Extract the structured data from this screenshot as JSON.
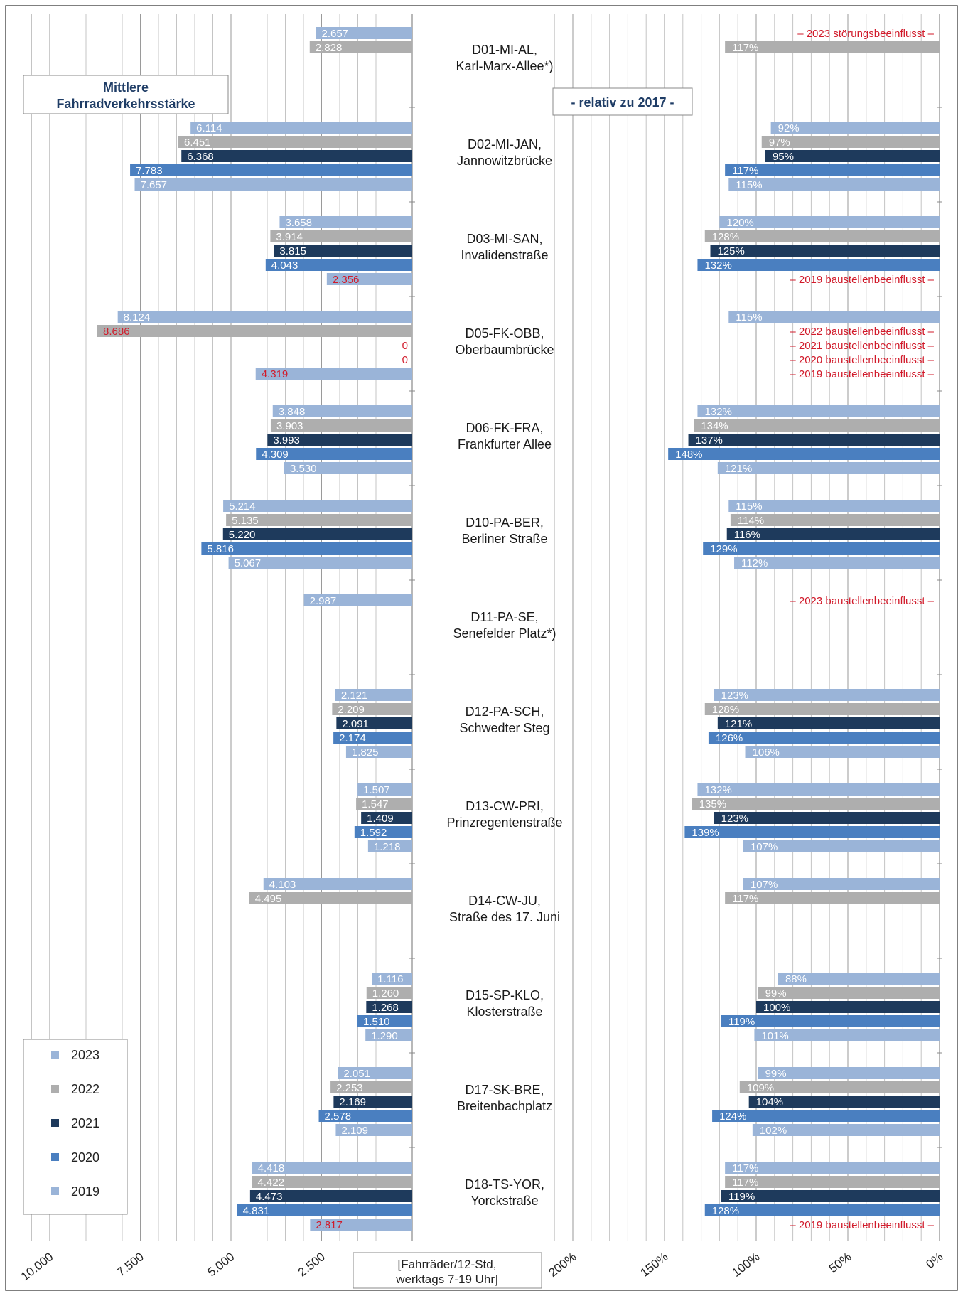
{
  "chart_data": {
    "type": "bar",
    "orientation": "horizontal",
    "left_panel_title": [
      "Mittlere",
      "Fahrradverkehrsstärke"
    ],
    "right_panel_title": "- relativ zu 2017 -",
    "unit_label": [
      "[Fahrräder/12-Std,",
      "werktags 7-19 Uhr]"
    ],
    "left_axis": {
      "ticks": [
        "10.000",
        "7.500",
        "5.000",
        "2.500"
      ],
      "tick_values": [
        10000,
        7500,
        5000,
        2500
      ],
      "range": [
        0,
        11000
      ],
      "grid": true
    },
    "right_axis": {
      "ticks": [
        "200%",
        "150%",
        "100%",
        "50%",
        "0%"
      ],
      "tick_values": [
        200,
        150,
        100,
        50,
        0
      ],
      "range": [
        0,
        220
      ],
      "grid": true
    },
    "years": [
      "2023",
      "2022",
      "2021",
      "2020",
      "2019"
    ],
    "colors": {
      "2023": "#9ab4d8",
      "2022": "#aeaeae",
      "2021": "#1e3a5c",
      "2020": "#4a7fc0",
      "2019": "#9ab4d8",
      "note": "#d11a2a"
    },
    "legend": {
      "placement": "bottom-left",
      "entries": [
        "2023",
        "2022",
        "2021",
        "2020",
        "2019"
      ]
    },
    "stations": [
      {
        "name": [
          "D01-MI-AL,",
          "Karl-Marx-Allee*)"
        ],
        "counts": [
          {
            "year": "2023",
            "value": 2657,
            "label": "2.657"
          },
          {
            "year": "2022",
            "value": 2828,
            "label": "2.828"
          }
        ],
        "relative": [
          {
            "year": "2023",
            "note": "– 2023 störungsbeeinflusst –"
          },
          {
            "year": "2022",
            "value": 117,
            "label": "117%"
          }
        ]
      },
      {
        "name": [
          "D02-MI-JAN,",
          "Jannowitzbrücke"
        ],
        "counts": [
          {
            "year": "2023",
            "value": 6114,
            "label": "6.114"
          },
          {
            "year": "2022",
            "value": 6451,
            "label": "6.451"
          },
          {
            "year": "2021",
            "value": 6368,
            "label": "6.368"
          },
          {
            "year": "2020",
            "value": 7783,
            "label": "7.783"
          },
          {
            "year": "2019",
            "value": 7657,
            "label": "7.657"
          }
        ],
        "relative": [
          {
            "year": "2023",
            "value": 92,
            "label": "92%"
          },
          {
            "year": "2022",
            "value": 97,
            "label": "97%"
          },
          {
            "year": "2021",
            "value": 95,
            "label": "95%"
          },
          {
            "year": "2020",
            "value": 117,
            "label": "117%"
          },
          {
            "year": "2019",
            "value": 115,
            "label": "115%"
          }
        ]
      },
      {
        "name": [
          "D03-MI-SAN,",
          "Invalidenstraße"
        ],
        "counts": [
          {
            "year": "2023",
            "value": 3658,
            "label": "3.658"
          },
          {
            "year": "2022",
            "value": 3914,
            "label": "3.914"
          },
          {
            "year": "2021",
            "value": 3815,
            "label": "3.815"
          },
          {
            "year": "2020",
            "value": 4043,
            "label": "4.043"
          },
          {
            "year": "2019",
            "value": 2356,
            "label": "2.356",
            "flagged": true
          }
        ],
        "relative": [
          {
            "year": "2023",
            "value": 120,
            "label": "120%"
          },
          {
            "year": "2022",
            "value": 128,
            "label": "128%"
          },
          {
            "year": "2021",
            "value": 125,
            "label": "125%"
          },
          {
            "year": "2020",
            "value": 132,
            "label": "132%"
          },
          {
            "year": "2019",
            "note": "– 2019 baustellenbeeinflusst –"
          }
        ]
      },
      {
        "name": [
          "D05-FK-OBB,",
          "Oberbaumbrücke"
        ],
        "counts": [
          {
            "year": "2023",
            "value": 8124,
            "label": "8.124"
          },
          {
            "year": "2022",
            "value": 8686,
            "label": "8.686",
            "flagged": true
          },
          {
            "year": "2021",
            "value": 0,
            "label": "0",
            "flagged": true
          },
          {
            "year": "2020",
            "value": 0,
            "label": "0",
            "flagged": true
          },
          {
            "year": "2019",
            "value": 4319,
            "label": "4.319",
            "flagged": true
          }
        ],
        "relative": [
          {
            "year": "2023",
            "value": 115,
            "label": "115%"
          },
          {
            "year": "2022",
            "note": "– 2022 baustellenbeeinflusst –"
          },
          {
            "year": "2021",
            "note": "– 2021 baustellenbeeinflusst –"
          },
          {
            "year": "2020",
            "note": "– 2020 baustellenbeeinflusst –"
          },
          {
            "year": "2019",
            "note": "– 2019 baustellenbeeinflusst –"
          }
        ]
      },
      {
        "name": [
          "D06-FK-FRA,",
          "Frankfurter Allee"
        ],
        "counts": [
          {
            "year": "2023",
            "value": 3848,
            "label": "3.848"
          },
          {
            "year": "2022",
            "value": 3903,
            "label": "3.903"
          },
          {
            "year": "2021",
            "value": 3993,
            "label": "3.993"
          },
          {
            "year": "2020",
            "value": 4309,
            "label": "4.309"
          },
          {
            "year": "2019",
            "value": 3530,
            "label": "3.530"
          }
        ],
        "relative": [
          {
            "year": "2023",
            "value": 132,
            "label": "132%"
          },
          {
            "year": "2022",
            "value": 134,
            "label": "134%"
          },
          {
            "year": "2021",
            "value": 137,
            "label": "137%"
          },
          {
            "year": "2020",
            "value": 148,
            "label": "148%"
          },
          {
            "year": "2019",
            "value": 121,
            "label": "121%"
          }
        ]
      },
      {
        "name": [
          "D10-PA-BER,",
          "Berliner Straße"
        ],
        "counts": [
          {
            "year": "2023",
            "value": 5214,
            "label": "5.214"
          },
          {
            "year": "2022",
            "value": 5135,
            "label": "5.135"
          },
          {
            "year": "2021",
            "value": 5220,
            "label": "5.220"
          },
          {
            "year": "2020",
            "value": 5816,
            "label": "5.816"
          },
          {
            "year": "2019",
            "value": 5067,
            "label": "5.067"
          }
        ],
        "relative": [
          {
            "year": "2023",
            "value": 115,
            "label": "115%"
          },
          {
            "year": "2022",
            "value": 114,
            "label": "114%"
          },
          {
            "year": "2021",
            "value": 116,
            "label": "116%"
          },
          {
            "year": "2020",
            "value": 129,
            "label": "129%"
          },
          {
            "year": "2019",
            "value": 112,
            "label": "112%"
          }
        ]
      },
      {
        "name": [
          "D11-PA-SE,",
          "Senefelder Platz*)"
        ],
        "counts": [
          {
            "year": "2023",
            "value": 2987,
            "label": "2.987"
          }
        ],
        "relative": [
          {
            "year": "2023",
            "note": "– 2023 baustellenbeeinflusst –"
          }
        ]
      },
      {
        "name": [
          "D12-PA-SCH,",
          "Schwedter Steg"
        ],
        "counts": [
          {
            "year": "2023",
            "value": 2121,
            "label": "2.121"
          },
          {
            "year": "2022",
            "value": 2209,
            "label": "2.209"
          },
          {
            "year": "2021",
            "value": 2091,
            "label": "2.091"
          },
          {
            "year": "2020",
            "value": 2174,
            "label": "2.174"
          },
          {
            "year": "2019",
            "value": 1825,
            "label": "1.825"
          }
        ],
        "relative": [
          {
            "year": "2023",
            "value": 123,
            "label": "123%"
          },
          {
            "year": "2022",
            "value": 128,
            "label": "128%"
          },
          {
            "year": "2021",
            "value": 121,
            "label": "121%"
          },
          {
            "year": "2020",
            "value": 126,
            "label": "126%"
          },
          {
            "year": "2019",
            "value": 106,
            "label": "106%"
          }
        ]
      },
      {
        "name": [
          "D13-CW-PRI,",
          "Prinzregentenstraße"
        ],
        "counts": [
          {
            "year": "2023",
            "value": 1507,
            "label": "1.507"
          },
          {
            "year": "2022",
            "value": 1547,
            "label": "1.547"
          },
          {
            "year": "2021",
            "value": 1409,
            "label": "1.409"
          },
          {
            "year": "2020",
            "value": 1592,
            "label": "1.592"
          },
          {
            "year": "2019",
            "value": 1218,
            "label": "1.218"
          }
        ],
        "relative": [
          {
            "year": "2023",
            "value": 132,
            "label": "132%"
          },
          {
            "year": "2022",
            "value": 135,
            "label": "135%"
          },
          {
            "year": "2021",
            "value": 123,
            "label": "123%"
          },
          {
            "year": "2020",
            "value": 139,
            "label": "139%"
          },
          {
            "year": "2019",
            "value": 107,
            "label": "107%"
          }
        ]
      },
      {
        "name": [
          "D14-CW-JU,",
          "Straße des 17. Juni"
        ],
        "counts": [
          {
            "year": "2023",
            "value": 4103,
            "label": "4.103"
          },
          {
            "year": "2022",
            "value": 4495,
            "label": "4.495"
          }
        ],
        "relative": [
          {
            "year": "2023",
            "value": 107,
            "label": "107%"
          },
          {
            "year": "2022",
            "value": 117,
            "label": "117%"
          }
        ]
      },
      {
        "name": [
          "D15-SP-KLO,",
          "Klosterstraße"
        ],
        "counts": [
          {
            "year": "2023",
            "value": 1116,
            "label": "1.116"
          },
          {
            "year": "2022",
            "value": 1260,
            "label": "1.260"
          },
          {
            "year": "2021",
            "value": 1268,
            "label": "1.268"
          },
          {
            "year": "2020",
            "value": 1510,
            "label": "1.510"
          },
          {
            "year": "2019",
            "value": 1290,
            "label": "1.290"
          }
        ],
        "relative": [
          {
            "year": "2023",
            "value": 88,
            "label": "88%"
          },
          {
            "year": "2022",
            "value": 99,
            "label": "99%"
          },
          {
            "year": "2021",
            "value": 100,
            "label": "100%"
          },
          {
            "year": "2020",
            "value": 119,
            "label": "119%"
          },
          {
            "year": "2019",
            "value": 101,
            "label": "101%"
          }
        ]
      },
      {
        "name": [
          "D17-SK-BRE,",
          "Breitenbachplatz"
        ],
        "counts": [
          {
            "year": "2023",
            "value": 2051,
            "label": "2.051"
          },
          {
            "year": "2022",
            "value": 2253,
            "label": "2.253"
          },
          {
            "year": "2021",
            "value": 2169,
            "label": "2.169"
          },
          {
            "year": "2020",
            "value": 2578,
            "label": "2.578"
          },
          {
            "year": "2019",
            "value": 2109,
            "label": "2.109"
          }
        ],
        "relative": [
          {
            "year": "2023",
            "value": 99,
            "label": "99%"
          },
          {
            "year": "2022",
            "value": 109,
            "label": "109%"
          },
          {
            "year": "2021",
            "value": 104,
            "label": "104%"
          },
          {
            "year": "2020",
            "value": 124,
            "label": "124%"
          },
          {
            "year": "2019",
            "value": 102,
            "label": "102%"
          }
        ]
      },
      {
        "name": [
          "D18-TS-YOR,",
          "Yorckstraße"
        ],
        "counts": [
          {
            "year": "2023",
            "value": 4418,
            "label": "4.418"
          },
          {
            "year": "2022",
            "value": 4422,
            "label": "4.422"
          },
          {
            "year": "2021",
            "value": 4473,
            "label": "4.473"
          },
          {
            "year": "2020",
            "value": 4831,
            "label": "4.831"
          },
          {
            "year": "2019",
            "value": 2817,
            "label": "2.817",
            "flagged": true
          }
        ],
        "relative": [
          {
            "year": "2023",
            "value": 117,
            "label": "117%"
          },
          {
            "year": "2022",
            "value": 117,
            "label": "117%"
          },
          {
            "year": "2021",
            "value": 119,
            "label": "119%"
          },
          {
            "year": "2020",
            "value": 128,
            "label": "128%"
          },
          {
            "year": "2019",
            "note": "– 2019 baustellenbeeinflusst –"
          }
        ]
      }
    ]
  }
}
